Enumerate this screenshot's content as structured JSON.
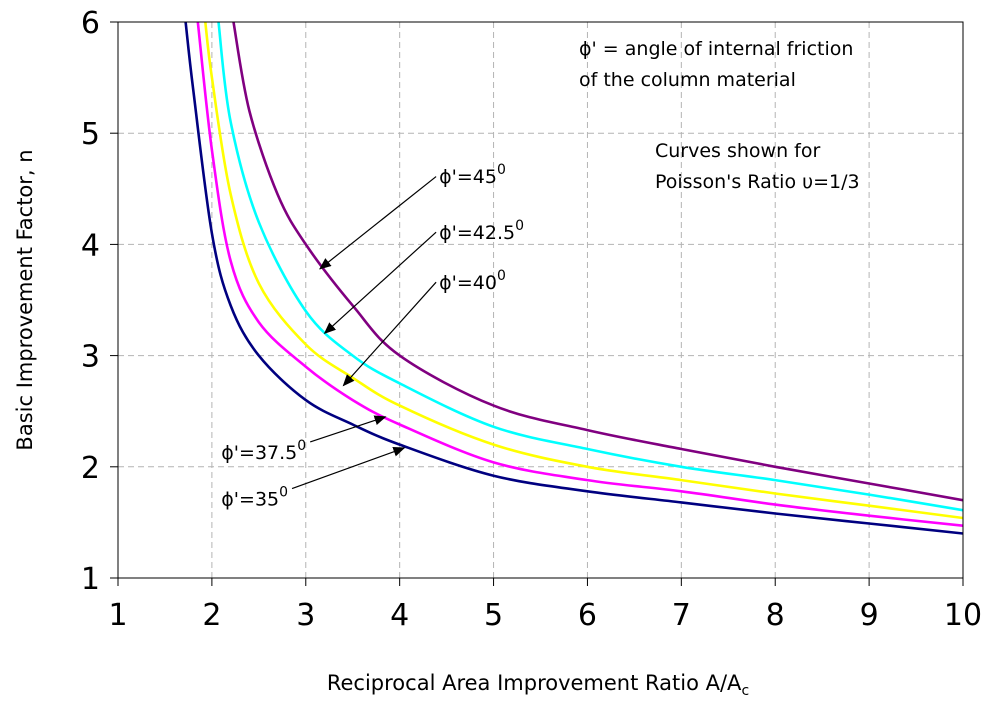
{
  "chart_data": {
    "type": "line",
    "title": "",
    "xlabel": "Reciprocal Area Improvement Ratio A/A",
    "xlabel_sub": "c",
    "ylabel": "Basic Improvement Factor, n",
    "xlim": [
      1,
      10
    ],
    "ylim": [
      1,
      6
    ],
    "x_ticks": [
      "1",
      "2",
      "3",
      "4",
      "5",
      "6",
      "7",
      "8",
      "9",
      "10"
    ],
    "y_ticks": [
      "1",
      "2",
      "3",
      "4",
      "5",
      "6"
    ],
    "grid": true,
    "legend": "none",
    "notes": [
      "ϕ' = angle of internal friction",
      "of the column material",
      "Curves shown for",
      "Poisson's Ratio υ=1/3"
    ],
    "series": [
      {
        "name": "ϕ'=35",
        "label_sup": "0",
        "color": "#000080",
        "points": [
          [
            1.72,
            6.0
          ],
          [
            1.8,
            5.4
          ],
          [
            2.0,
            4.1
          ],
          [
            2.2,
            3.45
          ],
          [
            2.5,
            3.0
          ],
          [
            3.0,
            2.6
          ],
          [
            3.5,
            2.38
          ],
          [
            4.0,
            2.2
          ],
          [
            5.0,
            1.92
          ],
          [
            6.0,
            1.78
          ],
          [
            7.0,
            1.68
          ],
          [
            8.0,
            1.58
          ],
          [
            9.0,
            1.49
          ],
          [
            10.0,
            1.4
          ]
        ]
      },
      {
        "name": "ϕ'=37.5",
        "label_sup": "0",
        "color": "#ff00ff",
        "points": [
          [
            1.85,
            6.0
          ],
          [
            2.0,
            4.85
          ],
          [
            2.2,
            3.85
          ],
          [
            2.5,
            3.3
          ],
          [
            3.0,
            2.9
          ],
          [
            3.5,
            2.6
          ],
          [
            4.0,
            2.38
          ],
          [
            5.0,
            2.04
          ],
          [
            6.0,
            1.88
          ],
          [
            7.0,
            1.78
          ],
          [
            8.0,
            1.66
          ],
          [
            9.0,
            1.56
          ],
          [
            10.0,
            1.47
          ]
        ]
      },
      {
        "name": "ϕ'=40",
        "label_sup": "0",
        "color": "#ffff00",
        "points": [
          [
            1.93,
            6.0
          ],
          [
            2.0,
            5.5
          ],
          [
            2.2,
            4.45
          ],
          [
            2.5,
            3.65
          ],
          [
            3.0,
            3.1
          ],
          [
            3.5,
            2.8
          ],
          [
            4.0,
            2.55
          ],
          [
            5.0,
            2.2
          ],
          [
            6.0,
            2.0
          ],
          [
            7.0,
            1.88
          ],
          [
            8.0,
            1.76
          ],
          [
            9.0,
            1.65
          ],
          [
            10.0,
            1.54
          ]
        ]
      },
      {
        "name": "ϕ'=42.5",
        "label_sup": "0",
        "color": "#00ffff",
        "points": [
          [
            2.07,
            6.0
          ],
          [
            2.2,
            5.1
          ],
          [
            2.5,
            4.2
          ],
          [
            3.0,
            3.4
          ],
          [
            3.5,
            3.0
          ],
          [
            4.0,
            2.75
          ],
          [
            5.0,
            2.36
          ],
          [
            6.0,
            2.16
          ],
          [
            7.0,
            2.0
          ],
          [
            8.0,
            1.88
          ],
          [
            9.0,
            1.75
          ],
          [
            10.0,
            1.61
          ]
        ]
      },
      {
        "name": "ϕ'=45",
        "label_sup": "0",
        "color": "#800080",
        "points": [
          [
            2.23,
            6.0
          ],
          [
            2.4,
            5.2
          ],
          [
            2.7,
            4.45
          ],
          [
            3.0,
            4.0
          ],
          [
            3.5,
            3.45
          ],
          [
            4.0,
            3.0
          ],
          [
            5.0,
            2.55
          ],
          [
            6.0,
            2.33
          ],
          [
            7.0,
            2.16
          ],
          [
            8.0,
            2.0
          ],
          [
            9.0,
            1.85
          ],
          [
            10.0,
            1.7
          ]
        ]
      }
    ],
    "annotations": [
      {
        "series": 4,
        "label_at": [
          4.42,
          4.55
        ],
        "arrow_to": [
          3.15,
          3.78
        ]
      },
      {
        "series": 3,
        "label_at": [
          4.42,
          4.05
        ],
        "arrow_to": [
          3.2,
          3.2
        ]
      },
      {
        "series": 2,
        "label_at": [
          4.42,
          3.6
        ],
        "arrow_to": [
          3.4,
          2.73
        ]
      },
      {
        "series": 1,
        "label_at": [
          2.1,
          2.07
        ],
        "arrow_to": [
          3.85,
          2.45
        ]
      },
      {
        "series": 0,
        "label_at": [
          2.1,
          1.65
        ],
        "arrow_to": [
          4.05,
          2.17
        ]
      }
    ]
  }
}
